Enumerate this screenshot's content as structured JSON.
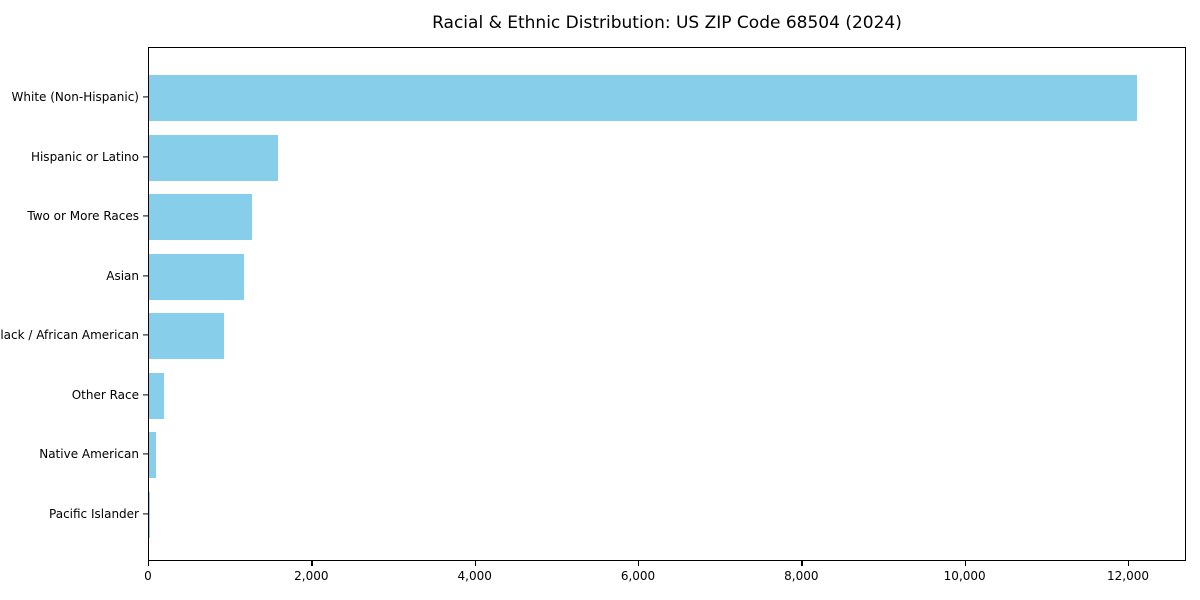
{
  "figure": {
    "background": "#ffffff"
  },
  "chart_data": {
    "type": "bar",
    "orientation": "horizontal",
    "title": "Racial & Ethnic Distribution: US ZIP Code 68504 (2024)",
    "categories": [
      "White (Non-Hispanic)",
      "Hispanic or Latino",
      "Two or More Races",
      "Asian",
      "Black / African American",
      "Other Race",
      "Native American",
      "Pacific Islander"
    ],
    "values": [
      12100,
      1580,
      1260,
      1160,
      920,
      180,
      80,
      10
    ],
    "xlabel": "",
    "ylabel": "",
    "xlim": [
      0,
      12710
    ],
    "xticks": [
      0,
      2000,
      4000,
      6000,
      8000,
      10000,
      12000
    ],
    "xtick_labels": [
      "0",
      "2,000",
      "4,000",
      "6,000",
      "8,000",
      "10,000",
      "12,000"
    ],
    "bar_color": "#87CEEB",
    "axis_color": "#000000",
    "grid": false,
    "legend": null
  }
}
